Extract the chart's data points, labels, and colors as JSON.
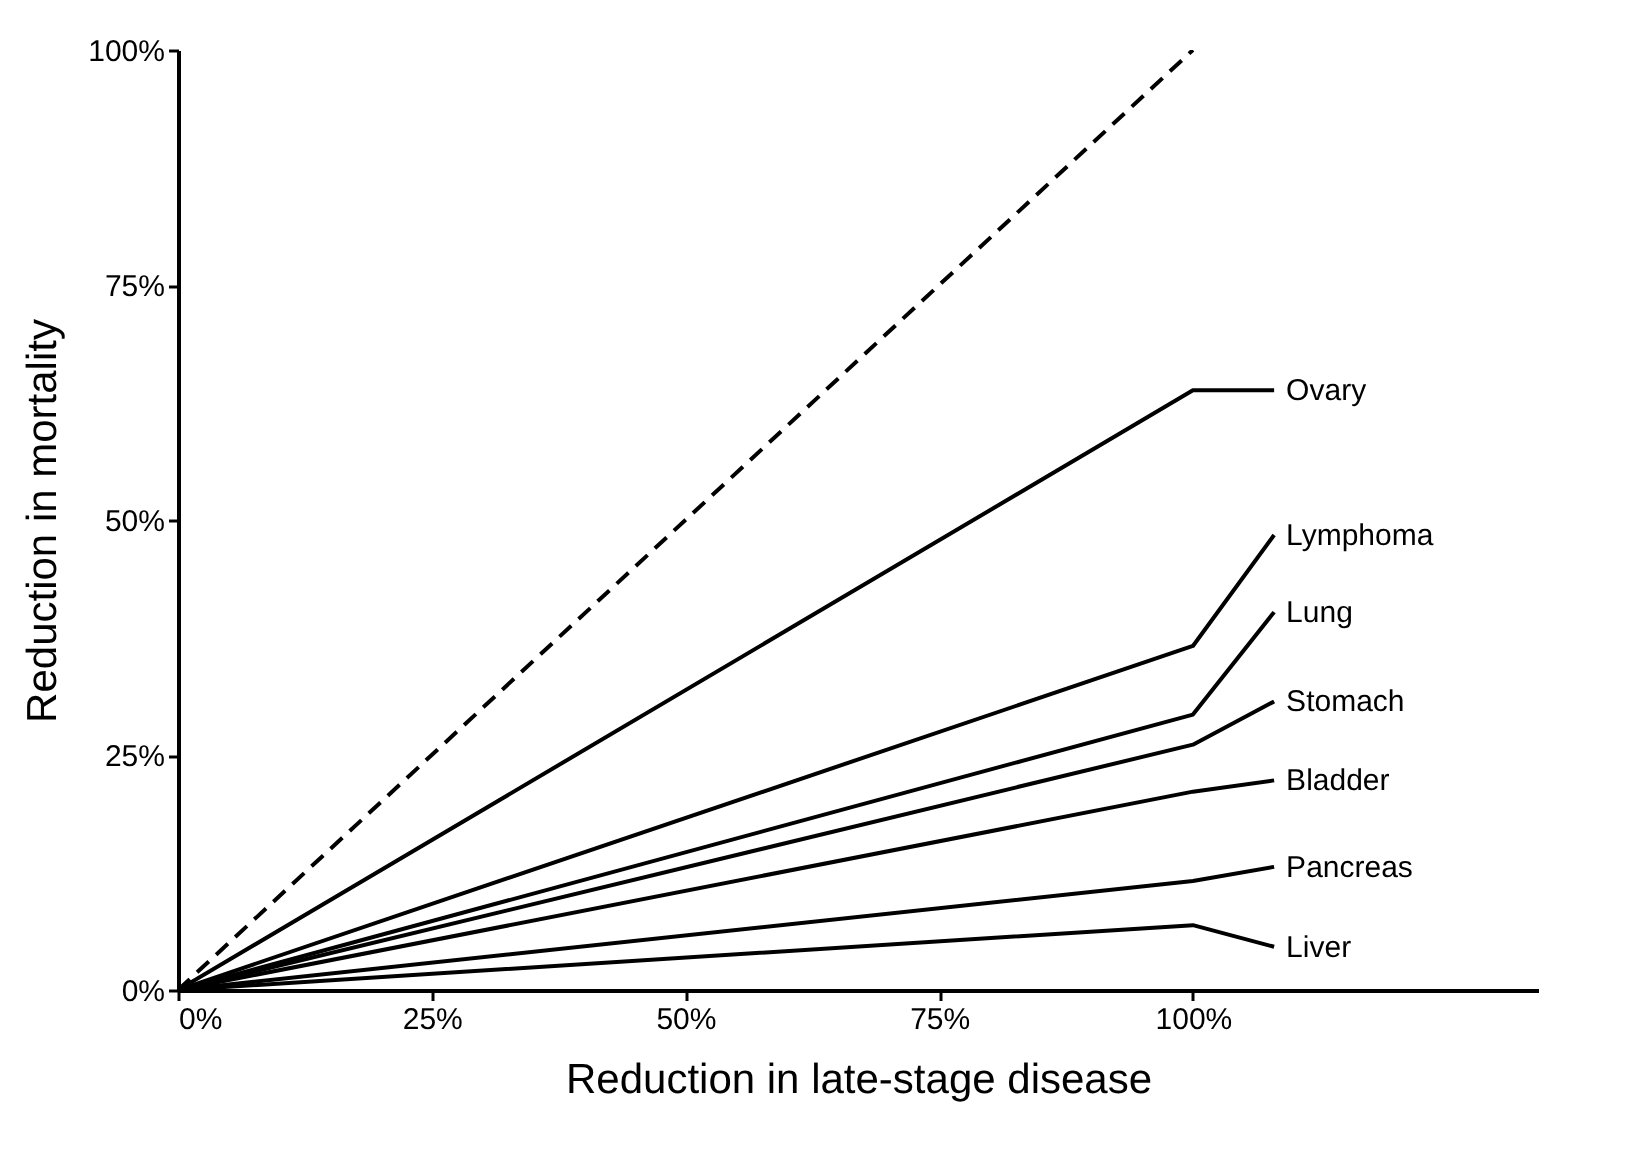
{
  "chart_data": {
    "type": "line",
    "xlabel": "Reduction in late-stage disease",
    "ylabel": "Reduction in mortality",
    "xlim": [
      0,
      134
    ],
    "ylim": [
      0,
      100
    ],
    "xticks": [
      {
        "value": 0,
        "label": "0%"
      },
      {
        "value": 25,
        "label": "25%"
      },
      {
        "value": 50,
        "label": "50%"
      },
      {
        "value": 75,
        "label": "75%"
      },
      {
        "value": 100,
        "label": "100%"
      }
    ],
    "yticks": [
      {
        "value": 0,
        "label": "0%"
      },
      {
        "value": 25,
        "label": "25%"
      },
      {
        "value": 50,
        "label": "50%"
      },
      {
        "value": 75,
        "label": "75%"
      },
      {
        "value": 100,
        "label": "100%"
      }
    ],
    "grid": false,
    "marker": "none",
    "series": [
      {
        "color": "#000000",
        "line_style": "dashed",
        "x": [
          0,
          100
        ],
        "values": [
          0,
          100
        ]
      },
      {
        "name": "Ovary",
        "color": "#000000",
        "line_style": "solid",
        "x": [
          0,
          100,
          108
        ],
        "values": [
          0,
          63.8,
          63.8
        ]
      },
      {
        "name": "Lymphoma",
        "color": "#000000",
        "line_style": "solid",
        "x": [
          0,
          100,
          108
        ],
        "values": [
          0,
          36.6,
          48.4
        ]
      },
      {
        "name": "Lung",
        "color": "#000000",
        "line_style": "solid",
        "x": [
          0,
          100,
          108
        ],
        "values": [
          0,
          29.3,
          40.2
        ]
      },
      {
        "name": "Stomach",
        "color": "#000000",
        "line_style": "solid",
        "x": [
          0,
          100,
          108
        ],
        "values": [
          0,
          26.1,
          30.7
        ]
      },
      {
        "name": "Bladder",
        "color": "#000000",
        "line_style": "solid",
        "x": [
          0,
          100,
          108
        ],
        "values": [
          0,
          21.1,
          22.3
        ]
      },
      {
        "name": "Pancreas",
        "color": "#000000",
        "line_style": "solid",
        "x": [
          0,
          100,
          108
        ],
        "values": [
          0,
          11.6,
          13.1
        ]
      },
      {
        "name": "Liver",
        "color": "#000000",
        "line_style": "solid",
        "x": [
          0,
          100,
          108
        ],
        "values": [
          0,
          6.9,
          4.6
        ]
      }
    ]
  }
}
